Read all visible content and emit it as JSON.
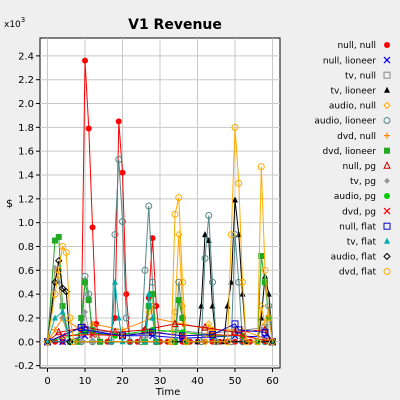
{
  "chart_data": {
    "type": "line",
    "title": "V1 Revenue",
    "xlabel": "Time",
    "ylabel": "$",
    "y_multiplier": "x10",
    "y_multiplier_exp": "3",
    "xlim": [
      -2,
      62
    ],
    "ylim": [
      -0.22,
      2.55
    ],
    "x_ticks": [
      0,
      10,
      20,
      30,
      40,
      50,
      60
    ],
    "y_ticks": [
      -0.2,
      0.0,
      0.2,
      0.4,
      0.6,
      0.8,
      1.0,
      1.2,
      1.4,
      1.6,
      1.8,
      2.0,
      2.2,
      2.4
    ],
    "y_tick_labels": [
      "-0.2",
      "0.0",
      "0.2",
      "0.4",
      "0.6",
      "0.8",
      "1.0",
      "1.2",
      "1.4",
      "1.6",
      "1.8",
      "2.0",
      "2.2",
      "2.4"
    ],
    "grid": true,
    "legend_position": "right",
    "series": [
      {
        "name": "null, null",
        "color": "#ff0000",
        "marker": "circle-filled",
        "points": [
          [
            0,
            0
          ],
          [
            2,
            0
          ],
          [
            4,
            0
          ],
          [
            6,
            0
          ],
          [
            8,
            0
          ],
          [
            9,
            0.1
          ],
          [
            10,
            2.36
          ],
          [
            11,
            1.79
          ],
          [
            12,
            0.96
          ],
          [
            13,
            0.15
          ],
          [
            14,
            0
          ],
          [
            16,
            0
          ],
          [
            18,
            0.2
          ],
          [
            19,
            1.85
          ],
          [
            20,
            1.42
          ],
          [
            21,
            0.4
          ],
          [
            22,
            0
          ],
          [
            24,
            0
          ],
          [
            26,
            0.1
          ],
          [
            27,
            0.37
          ],
          [
            28,
            0.87
          ],
          [
            29,
            0.3
          ],
          [
            30,
            0
          ],
          [
            32,
            0
          ],
          [
            34,
            0
          ],
          [
            36,
            0
          ],
          [
            38,
            0
          ],
          [
            40,
            0
          ],
          [
            42,
            0
          ],
          [
            44,
            0
          ],
          [
            46,
            0
          ],
          [
            48,
            0
          ],
          [
            50,
            0
          ],
          [
            52,
            0
          ],
          [
            54,
            0
          ],
          [
            56,
            0
          ],
          [
            58,
            0
          ],
          [
            60,
            0
          ]
        ]
      },
      {
        "name": "null, lioneer",
        "color": "#0000ff",
        "marker": "x",
        "points": [
          [
            0,
            0
          ],
          [
            4,
            0
          ],
          [
            10,
            0.05
          ],
          [
            11,
            0.08
          ],
          [
            20,
            0.05
          ],
          [
            28,
            0.05
          ],
          [
            36,
            0.03
          ],
          [
            44,
            0.04
          ],
          [
            50,
            0.05
          ],
          [
            58,
            0.04
          ],
          [
            60,
            0
          ]
        ]
      },
      {
        "name": "tv, null",
        "color": "#888888",
        "marker": "square-open",
        "points": [
          [
            0,
            0
          ],
          [
            9,
            0.12
          ],
          [
            10,
            0.1
          ],
          [
            18,
            0.08
          ],
          [
            26,
            0.06
          ],
          [
            34,
            0.1
          ],
          [
            42,
            0.07
          ],
          [
            50,
            0.09
          ],
          [
            58,
            0.12
          ],
          [
            60,
            0
          ]
        ]
      },
      {
        "name": "tv, lioneer",
        "color": "#000000",
        "marker": "triangle-filled",
        "points": [
          [
            0,
            0
          ],
          [
            40,
            0
          ],
          [
            41,
            0.3
          ],
          [
            42,
            0.9
          ],
          [
            43,
            0.85
          ],
          [
            44,
            0.3
          ],
          [
            45,
            0
          ],
          [
            47,
            0
          ],
          [
            48,
            0.3
          ],
          [
            49,
            0.5
          ],
          [
            50,
            1.19
          ],
          [
            51,
            0.9
          ],
          [
            52,
            0.4
          ],
          [
            53,
            0
          ],
          [
            56,
            0
          ],
          [
            57,
            0.2
          ],
          [
            58,
            0.55
          ],
          [
            59,
            0.4
          ],
          [
            60,
            0
          ]
        ]
      },
      {
        "name": "audio, null",
        "color": "#ffaa00",
        "marker": "diamond-open",
        "points": [
          [
            0,
            0
          ],
          [
            2,
            0.6
          ],
          [
            3,
            0.55
          ],
          [
            4,
            0.2
          ],
          [
            6,
            0
          ],
          [
            26,
            0
          ],
          [
            27,
            0.25
          ],
          [
            28,
            0.3
          ],
          [
            29,
            0
          ],
          [
            33,
            0
          ],
          [
            34,
            0.25
          ],
          [
            35,
            0.9
          ],
          [
            36,
            0.3
          ],
          [
            37,
            0
          ],
          [
            42,
            0
          ],
          [
            43,
            0.15
          ],
          [
            44,
            0.1
          ],
          [
            45,
            0
          ],
          [
            56,
            0
          ],
          [
            57,
            0.3
          ],
          [
            58,
            0.15
          ],
          [
            59,
            0
          ],
          [
            60,
            0
          ]
        ]
      },
      {
        "name": "audio, lioneer",
        "color": "#558888",
        "marker": "circle-open",
        "points": [
          [
            0,
            0
          ],
          [
            9,
            0
          ],
          [
            10,
            0.55
          ],
          [
            11,
            0.4
          ],
          [
            12,
            0
          ],
          [
            17,
            0
          ],
          [
            18,
            0.9
          ],
          [
            19,
            1.53
          ],
          [
            20,
            1.01
          ],
          [
            21,
            0.2
          ],
          [
            22,
            0
          ],
          [
            25,
            0
          ],
          [
            26,
            0.6
          ],
          [
            27,
            1.14
          ],
          [
            28,
            0.5
          ],
          [
            29,
            0
          ],
          [
            34,
            0
          ],
          [
            35,
            0.5
          ],
          [
            36,
            0.2
          ],
          [
            37,
            0
          ],
          [
            41,
            0
          ],
          [
            42,
            0.7
          ],
          [
            43,
            1.06
          ],
          [
            44,
            0.5
          ],
          [
            45,
            0
          ],
          [
            49,
            0
          ],
          [
            50,
            0.9
          ],
          [
            51,
            0.5
          ],
          [
            52,
            0
          ],
          [
            58,
            0
          ],
          [
            59,
            0.3
          ],
          [
            60,
            0
          ]
        ]
      },
      {
        "name": "dvd, null",
        "color": "#ff8800",
        "marker": "plus",
        "points": [
          [
            0,
            0
          ],
          [
            2,
            0.1
          ],
          [
            4,
            0.2
          ],
          [
            10,
            0.08
          ],
          [
            12,
            0.15
          ],
          [
            20,
            0.1
          ],
          [
            28,
            0.2
          ],
          [
            36,
            0.15
          ],
          [
            44,
            0.1
          ],
          [
            52,
            0.1
          ],
          [
            60,
            0
          ]
        ]
      },
      {
        "name": "dvd, lioneer",
        "color": "#22aa22",
        "marker": "square-filled",
        "points": [
          [
            0,
            0
          ],
          [
            2,
            0.85
          ],
          [
            3,
            0.88
          ],
          [
            4,
            0.3
          ],
          [
            6,
            0
          ],
          [
            8,
            0
          ],
          [
            9,
            0.2
          ],
          [
            10,
            0.5
          ],
          [
            11,
            0.35
          ],
          [
            12,
            0.1
          ],
          [
            14,
            0
          ],
          [
            26,
            0
          ],
          [
            27,
            0.3
          ],
          [
            28,
            0.4
          ],
          [
            29,
            0
          ],
          [
            34,
            0
          ],
          [
            35,
            0.35
          ],
          [
            36,
            0.2
          ],
          [
            37,
            0
          ],
          [
            56,
            0
          ],
          [
            57,
            0.72
          ],
          [
            58,
            0.5
          ],
          [
            59,
            0.2
          ],
          [
            60,
            0
          ]
        ]
      },
      {
        "name": "null, pg",
        "color": "#cc0000",
        "marker": "triangle-open",
        "points": [
          [
            0,
            0
          ],
          [
            3,
            0.08
          ],
          [
            10,
            0.12
          ],
          [
            18,
            0.08
          ],
          [
            26,
            0.1
          ],
          [
            34,
            0.15
          ],
          [
            42,
            0.12
          ],
          [
            50,
            0.08
          ],
          [
            58,
            0.1
          ],
          [
            60,
            0
          ]
        ]
      },
      {
        "name": "tv, pg",
        "color": "#999999",
        "marker": "diamond-filled",
        "points": [
          [
            0,
            0
          ],
          [
            2,
            0.62
          ],
          [
            3,
            0.5
          ],
          [
            4,
            0.2
          ],
          [
            6,
            0
          ],
          [
            9,
            0
          ],
          [
            10,
            0.25
          ],
          [
            11,
            0.1
          ],
          [
            12,
            0
          ],
          [
            60,
            0
          ]
        ]
      },
      {
        "name": "audio, pg",
        "color": "#00cc00",
        "marker": "circle-filled",
        "points": [
          [
            0,
            0
          ],
          [
            10,
            0.08
          ],
          [
            18,
            0.05
          ],
          [
            28,
            0.1
          ],
          [
            36,
            0.08
          ],
          [
            44,
            0.05
          ],
          [
            52,
            0.05
          ],
          [
            60,
            0
          ]
        ]
      },
      {
        "name": "dvd, pg",
        "color": "#ff0000",
        "marker": "x",
        "points": [
          [
            0,
            0
          ],
          [
            4,
            0.05
          ],
          [
            12,
            0.06
          ],
          [
            20,
            0.05
          ],
          [
            28,
            0.08
          ],
          [
            36,
            0.05
          ],
          [
            44,
            0.06
          ],
          [
            52,
            0.05
          ],
          [
            60,
            0
          ]
        ]
      },
      {
        "name": "null, flat",
        "color": "#0000cc",
        "marker": "square-open",
        "points": [
          [
            0,
            0
          ],
          [
            9,
            0.12
          ],
          [
            10,
            0.1
          ],
          [
            20,
            0.05
          ],
          [
            28,
            0.08
          ],
          [
            36,
            0.05
          ],
          [
            44,
            0.06
          ],
          [
            50,
            0.15
          ],
          [
            51,
            0.1
          ],
          [
            58,
            0.08
          ],
          [
            60,
            0
          ]
        ]
      },
      {
        "name": "tv, flat",
        "color": "#00aaaa",
        "marker": "triangle-filled",
        "points": [
          [
            0,
            0
          ],
          [
            2,
            0.2
          ],
          [
            4,
            0.25
          ],
          [
            6,
            0
          ],
          [
            17,
            0
          ],
          [
            18,
            0.5
          ],
          [
            19,
            0.2
          ],
          [
            20,
            0
          ],
          [
            26,
            0
          ],
          [
            27,
            0.4
          ],
          [
            28,
            0.2
          ],
          [
            29,
            0
          ],
          [
            60,
            0
          ]
        ]
      },
      {
        "name": "audio, flat",
        "color": "#000000",
        "marker": "diamond-open",
        "points": [
          [
            0,
            0
          ],
          [
            2,
            0.5
          ],
          [
            3,
            0.68
          ],
          [
            4,
            0.45
          ],
          [
            5,
            0.42
          ],
          [
            6,
            0
          ],
          [
            60,
            0
          ]
        ]
      },
      {
        "name": "dvd, flat",
        "color": "#ffaa00",
        "marker": "circle-open",
        "points": [
          [
            0,
            0
          ],
          [
            2,
            0.4
          ],
          [
            3,
            0.6
          ],
          [
            4,
            0.8
          ],
          [
            5,
            0.75
          ],
          [
            6,
            0.2
          ],
          [
            7,
            0
          ],
          [
            33,
            0
          ],
          [
            34,
            1.07
          ],
          [
            35,
            1.21
          ],
          [
            36,
            0.5
          ],
          [
            37,
            0
          ],
          [
            48,
            0
          ],
          [
            49,
            0.9
          ],
          [
            50,
            1.8
          ],
          [
            51,
            1.33
          ],
          [
            52,
            0.5
          ],
          [
            53,
            0
          ],
          [
            56,
            0
          ],
          [
            57,
            1.47
          ],
          [
            58,
            0.6
          ],
          [
            59,
            0.2
          ],
          [
            60,
            0
          ]
        ]
      }
    ]
  }
}
